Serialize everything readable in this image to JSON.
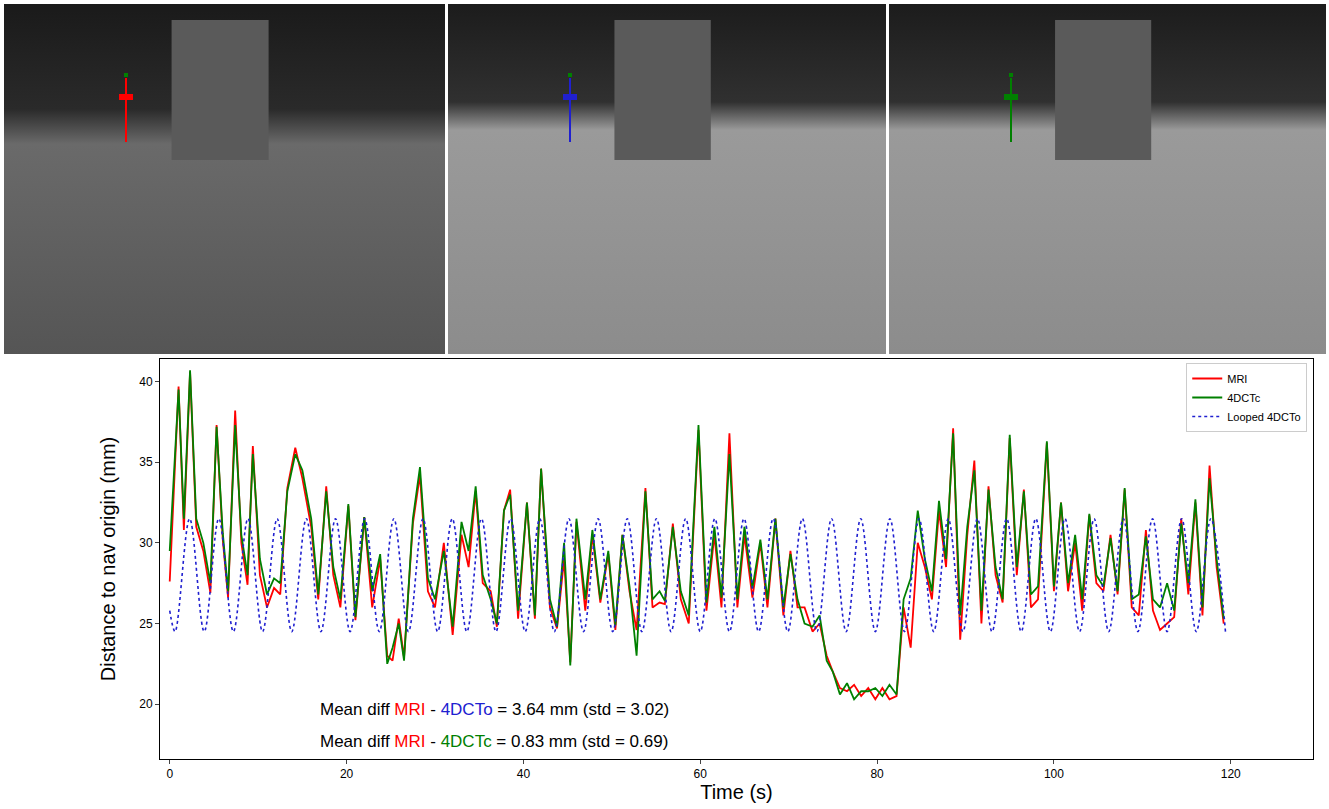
{
  "chart_data": {
    "type": "line",
    "x_label": "Time (s)",
    "y_label": "Distance to nav origin (mm)",
    "xlim": [
      -1.1,
      129.3
    ],
    "xticks": [
      0,
      20,
      40,
      60,
      80,
      100,
      120
    ],
    "ylim": [
      16.6,
      41.4
    ],
    "yticks": [
      20,
      25,
      30,
      35,
      40
    ],
    "grid": false,
    "legend": "upper right",
    "x": [
      0,
      1.0,
      1.6,
      2.3,
      3.0,
      3.8,
      4.6,
      5.3,
      6.0,
      6.6,
      7.4,
      8.1,
      8.8,
      9.4,
      10.2,
      11.0,
      11.8,
      12.5,
      13.3,
      14.2,
      15.0,
      16.0,
      16.8,
      17.7,
      18.5,
      19.3,
      20.2,
      21.0,
      22.0,
      22.9,
      23.8,
      24.6,
      25.2,
      25.9,
      26.5,
      27.5,
      28.3,
      29.2,
      30.0,
      31.0,
      32.0,
      33.0,
      33.8,
      34.6,
      35.4,
      36.3,
      37.0,
      37.8,
      38.5,
      39.4,
      40.4,
      41.3,
      42.0,
      43.0,
      43.8,
      44.6,
      45.3,
      46.0,
      47.0,
      47.8,
      48.7,
      49.6,
      50.4,
      51.2,
      52.0,
      52.8,
      53.8,
      54.6,
      55.4,
      56.0,
      56.9,
      57.8,
      58.7,
      59.8,
      60.7,
      61.6,
      62.4,
      63.3,
      64.2,
      65.0,
      65.9,
      66.8,
      67.6,
      68.5,
      69.4,
      70.2,
      71.0,
      71.8,
      72.7,
      73.5,
      74.3,
      75.0,
      75.8,
      76.6,
      77.4,
      78.2,
      79.0,
      79.8,
      80.6,
      81.4,
      82.2,
      83.0,
      83.8,
      84.6,
      85.4,
      86.2,
      87.0,
      87.8,
      88.6,
      89.4,
      90.2,
      91.0,
      91.8,
      92.6,
      93.4,
      94.2,
      95.0,
      95.8,
      96.6,
      97.4,
      98.2,
      99.2,
      100.0,
      100.8,
      101.6,
      102.4,
      103.2,
      104.0,
      104.8,
      105.6,
      106.4,
      107.2,
      108.0,
      108.8,
      109.6,
      110.4,
      111.2,
      112.0,
      112.8,
      113.6,
      114.4,
      115.2,
      116.0,
      116.8,
      117.6,
      118.4,
      119.2
    ],
    "series": [
      {
        "name": "MRI",
        "color": "#ff0000",
        "line_style": "solid",
        "values": [
          27.6,
          39.7,
          30.8,
          40.6,
          31.0,
          29.5,
          26.9,
          37.3,
          30.2,
          26.6,
          38.2,
          30.0,
          27.4,
          36.0,
          28.0,
          26.0,
          27.2,
          26.8,
          33.4,
          35.9,
          34.0,
          31.0,
          26.5,
          33.5,
          28.0,
          26.0,
          32.3,
          25.2,
          31.6,
          26.0,
          29.0,
          23.0,
          22.7,
          25.3,
          22.9,
          31.2,
          34.2,
          27.0,
          26.0,
          30.0,
          24.3,
          30.5,
          28.5,
          33.2,
          27.5,
          27.0,
          24.8,
          32.0,
          33.3,
          25.3,
          32.5,
          25.3,
          34.6,
          26.0,
          24.7,
          29.0,
          22.6,
          31.3,
          25.8,
          30.5,
          26.3,
          29.3,
          24.6,
          30.5,
          27.0,
          24.6,
          33.4,
          26.0,
          26.3,
          26.2,
          31.2,
          26.5,
          25.0,
          37.0,
          25.8,
          30.5,
          26.0,
          36.8,
          26.0,
          30.5,
          26.6,
          30.0,
          26.0,
          31.5,
          25.5,
          29.5,
          26.0,
          26.0,
          24.5,
          25.0,
          23.0,
          22.0,
          21.0,
          20.8,
          21.2,
          20.5,
          21.0,
          20.3,
          21.0,
          20.3,
          20.5,
          26.0,
          23.5,
          30.0,
          28.5,
          26.5,
          32.0,
          28.5,
          37.1,
          24.0,
          30.5,
          35.1,
          25.0,
          33.5,
          28.0,
          26.3,
          36.5,
          28.0,
          33.3,
          26.0,
          26.5,
          36.2,
          27.0,
          32.5,
          27.0,
          30.0,
          25.8,
          31.7,
          27.5,
          27.0,
          30.5,
          26.8,
          33.3,
          26.0,
          25.5,
          30.8,
          25.8,
          24.6,
          25.0,
          25.4,
          31.5,
          26.8,
          32.5,
          25.5,
          34.8,
          28.5,
          25.0
        ]
      },
      {
        "name": "4DCTc",
        "color": "#008000",
        "line_style": "solid",
        "values": [
          29.5,
          39.5,
          31.5,
          40.7,
          31.5,
          30,
          27.5,
          37.2,
          30.6,
          27.0,
          37.3,
          30.5,
          28,
          35.5,
          29,
          26.8,
          27.8,
          27.5,
          33.2,
          35.5,
          34.5,
          31.5,
          26.8,
          33.2,
          28.5,
          26.5,
          32.4,
          25.4,
          31.6,
          27,
          29.3,
          22.5,
          23.5,
          25,
          22.7,
          31.5,
          34.7,
          27.8,
          26.5,
          29.5,
          24.8,
          31.3,
          29.5,
          33.5,
          28,
          26.5,
          25,
          32.0,
          33.0,
          25.8,
          32.5,
          25.5,
          34.6,
          26.5,
          24.8,
          30,
          22.4,
          31.5,
          26.5,
          30.8,
          26.5,
          29.5,
          24.9,
          30.5,
          27.3,
          23,
          33.2,
          26.5,
          27,
          26.4,
          31.0,
          27,
          25.5,
          37.3,
          26.3,
          31,
          26.6,
          35.5,
          26.5,
          31,
          27.2,
          30.2,
          26.5,
          31.5,
          26,
          29.3,
          26.5,
          25,
          24.8,
          25.5,
          22.7,
          22.0,
          20.6,
          21.3,
          20.3,
          20.8,
          20.8,
          21,
          20.5,
          21.2,
          20.6,
          26.5,
          27.8,
          32.0,
          29,
          27,
          32.6,
          29,
          36.8,
          25.5,
          31,
          34.5,
          25.8,
          33.3,
          28.5,
          26.5,
          36.7,
          28.5,
          33.2,
          26.8,
          27.3,
          36.3,
          27.3,
          32.5,
          27.5,
          30.5,
          26.5,
          31.8,
          28,
          27.3,
          30.3,
          27.0,
          33.4,
          26.5,
          26.8,
          30.4,
          26.5,
          26,
          27.5,
          25.8,
          31.2,
          27.5,
          32.7,
          26,
          34.0,
          29,
          25.3
        ]
      },
      {
        "name": "Looped 4DCTo",
        "color": "#2020d0",
        "line_style": "dotted",
        "x": [
          0,
          0.6,
          2.25,
          3.9,
          5.55,
          7.2,
          8.85,
          10.5,
          12.15,
          13.8,
          15.45,
          17.1,
          18.75,
          20.4,
          22.05,
          23.7,
          25.35,
          27.0,
          28.65,
          30.3,
          31.95,
          33.6,
          35.25,
          36.9,
          38.55,
          40.2,
          41.85,
          43.5,
          45.15,
          46.8,
          48.45,
          50.1,
          51.75,
          53.4,
          55.05,
          56.7,
          58.35,
          60.0,
          61.65,
          63.3,
          64.95,
          66.6,
          68.25,
          69.9,
          71.55,
          73.2,
          74.85,
          76.5,
          78.15,
          79.8,
          81.45,
          83.1,
          84.75,
          86.4,
          88.05,
          89.7,
          91.35,
          93.0,
          94.65,
          96.3,
          97.95,
          99.6,
          101.25,
          102.9,
          104.55,
          106.2,
          107.85,
          109.5,
          111.15,
          112.8,
          114.45,
          116.1,
          117.75,
          119.4
        ],
        "values": [
          25.8,
          24.5,
          31.5,
          24.5,
          31.5,
          24.5,
          31.5,
          24.5,
          31.5,
          24.5,
          31.5,
          24.5,
          31.5,
          24.5,
          31.5,
          24.5,
          31.5,
          24.5,
          31.5,
          24.5,
          31.5,
          24.5,
          31.5,
          24.5,
          31.5,
          24.5,
          31.5,
          24.5,
          31.5,
          24.5,
          31.5,
          24.5,
          31.5,
          24.5,
          31.5,
          24.5,
          31.5,
          24.5,
          31.5,
          24.5,
          31.5,
          24.5,
          31.5,
          24.5,
          31.5,
          24.5,
          31.5,
          24.5,
          31.5,
          24.5,
          31.5,
          24.5,
          31.5,
          24.5,
          31.5,
          24.5,
          31.5,
          24.5,
          31.5,
          24.5,
          31.5,
          24.5,
          31.5,
          24.5,
          31.5,
          24.5,
          31.5,
          24.5,
          31.5,
          24.5,
          31.5,
          24.5,
          31.5,
          24.5
        ]
      }
    ],
    "annotations": [
      {
        "parts": [
          {
            "text": "Mean diff "
          },
          {
            "text": "MRI",
            "color": "#ff0000"
          },
          {
            "text": " - "
          },
          {
            "text": "4DCTo",
            "color": "#2020d0"
          },
          {
            "text": " = 3.64 mm (std = 3.02)"
          }
        ]
      },
      {
        "parts": [
          {
            "text": "Mean diff "
          },
          {
            "text": "MRI",
            "color": "#ff0000"
          },
          {
            "text": " - "
          },
          {
            "text": "4DCTc",
            "color": "#008000"
          },
          {
            "text": " = 0.83 mm (std = 0.69)"
          }
        ]
      }
    ]
  }
}
